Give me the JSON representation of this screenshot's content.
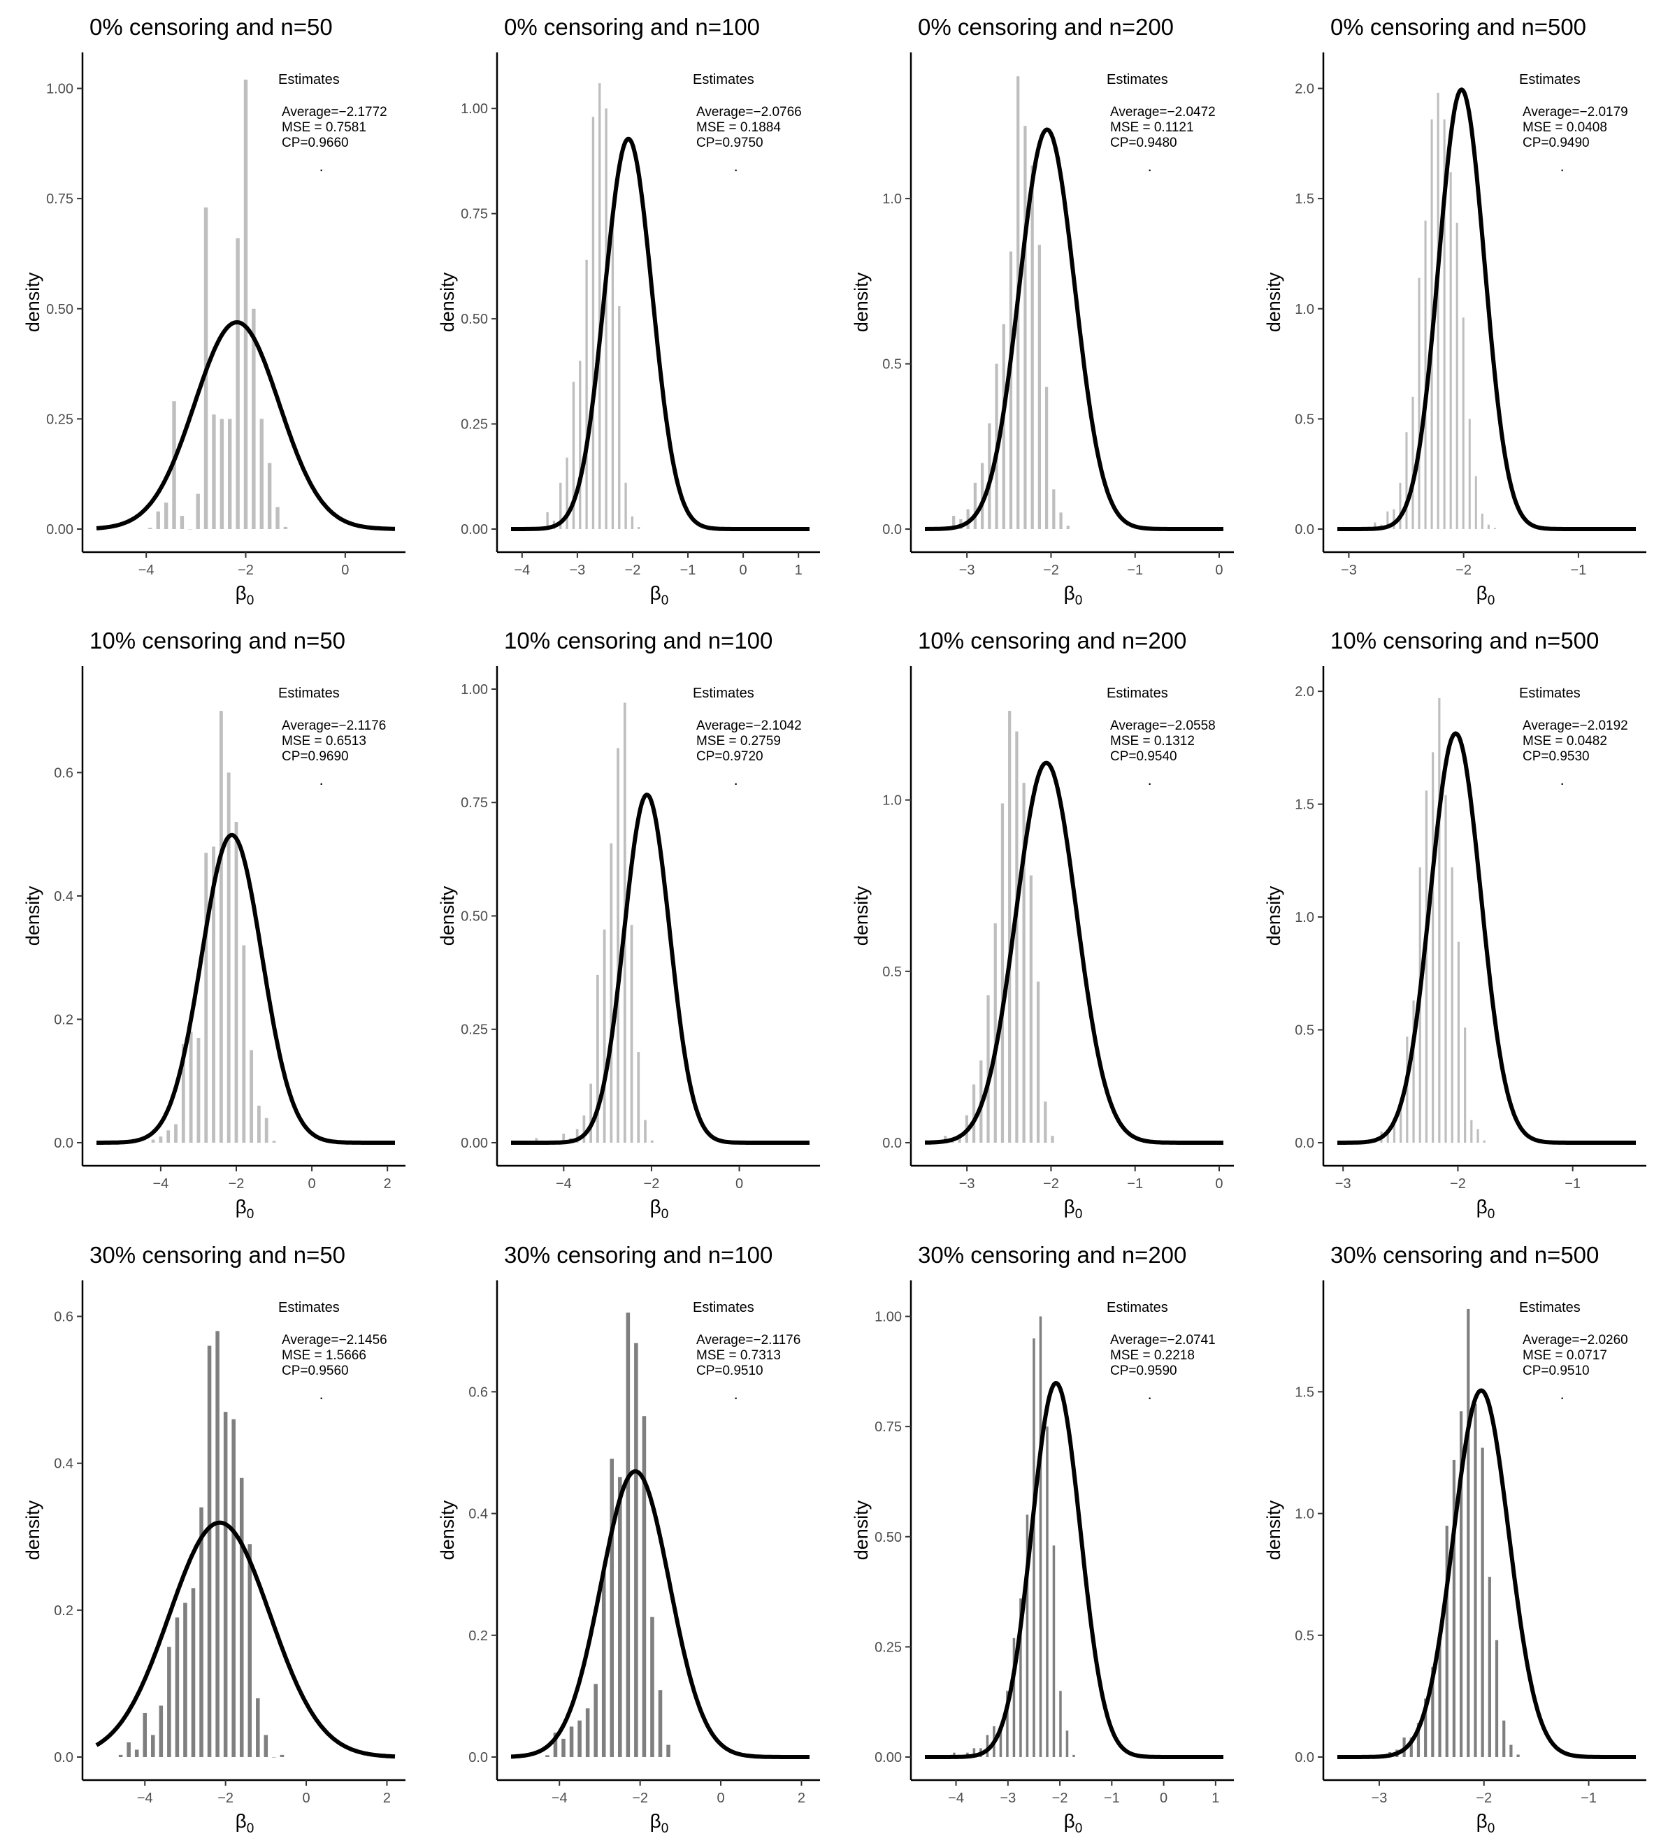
{
  "figure": {
    "ylabel": "density",
    "xlabel_base": "β",
    "xlabel_sub": "0"
  },
  "colors": {
    "bar_light": "#bebebe",
    "bar_dark": "#7f7f7f",
    "curve": "#000000",
    "axis": "#000000",
    "tick_text": "#4d4d4d"
  },
  "chart_data": [
    {
      "type": "bar",
      "title": "0% censoring and n=50",
      "bar_shade": "light",
      "xlim": [
        -5,
        1
      ],
      "ylim": [
        0,
        1.05
      ],
      "xticks": [
        -4,
        -2,
        0
      ],
      "yticks": [
        0,
        0.25,
        0.5,
        0.75,
        1.0
      ],
      "ytick_labels": [
        "0.00",
        "0.25",
        "0.50",
        "0.75",
        "1.00"
      ],
      "bins": {
        "start": -4.0,
        "width": 0.16,
        "values": [
          0.003,
          0.04,
          0.06,
          0.29,
          0.03,
          0.0,
          0.08,
          0.73,
          0.26,
          0.25,
          0.25,
          0.66,
          1.02,
          0.5,
          0.25,
          0.15,
          0.05,
          0.005
        ]
      },
      "curve": {
        "mean": -2.1772,
        "sd": 0.85
      },
      "legend": {
        "title": "Estimates",
        "average": "Average=−2.1772",
        "mse": "MSE = 0.7581",
        "cp": "CP=0.9660",
        "dot": "·"
      }
    },
    {
      "type": "bar",
      "title": "0% censoring and n=100",
      "bar_shade": "light",
      "xlim": [
        -4.2,
        1.2
      ],
      "ylim": [
        0,
        1.1
      ],
      "xticks": [
        -4,
        -3,
        -2,
        -1,
        0,
        1
      ],
      "yticks": [
        0,
        0.25,
        0.5,
        0.75,
        1.0
      ],
      "ytick_labels": [
        "0.00",
        "0.25",
        "0.50",
        "0.75",
        "1.00"
      ],
      "bins": {
        "start": -3.6,
        "width": 0.118,
        "values": [
          0.04,
          0.02,
          0.11,
          0.17,
          0.35,
          0.4,
          0.64,
          0.98,
          1.06,
          1.0,
          0.75,
          0.53,
          0.11,
          0.03,
          0.005
        ]
      },
      "curve": {
        "mean": -2.0766,
        "sd": 0.43
      },
      "legend": {
        "title": "Estimates",
        "average": "Average=−2.0766",
        "mse": "MSE = 0.1884",
        "cp": "CP=0.9750",
        "dot": "·"
      }
    },
    {
      "type": "bar",
      "title": "0% censoring and n=200",
      "bar_shade": "light",
      "xlim": [
        -3.5,
        0.05
      ],
      "ylim": [
        0,
        1.4
      ],
      "xticks": [
        -3,
        -2,
        -1,
        0
      ],
      "yticks": [
        0,
        0.5,
        1.0
      ],
      "ytick_labels": [
        "0.0",
        "0.5",
        "1.0"
      ],
      "bins": {
        "start": -3.2,
        "width": 0.085,
        "values": [
          0.04,
          0.03,
          0.06,
          0.14,
          0.2,
          0.32,
          0.5,
          0.62,
          0.84,
          1.37,
          1.22,
          1.1,
          0.86,
          0.43,
          0.12,
          0.05,
          0.01
        ]
      },
      "curve": {
        "mean": -2.0472,
        "sd": 0.33
      },
      "legend": {
        "title": "Estimates",
        "average": "Average=−2.0472",
        "mse": "MSE = 0.1121",
        "cp": "CP=0.9480",
        "dot": "·"
      }
    },
    {
      "type": "bar",
      "title": "0% censoring and n=500",
      "bar_shade": "light",
      "xlim": [
        -3.1,
        -0.5
      ],
      "ylim": [
        0,
        2.1
      ],
      "xticks": [
        -3,
        -2,
        -1
      ],
      "yticks": [
        0,
        0.5,
        1.0,
        1.5,
        2.0
      ],
      "ytick_labels": [
        "0.0",
        "0.5",
        "1.0",
        "1.5",
        "2.0"
      ],
      "bins": {
        "start": -2.8,
        "width": 0.055,
        "values": [
          0.03,
          0.02,
          0.08,
          0.09,
          0.21,
          0.44,
          0.6,
          1.14,
          1.4,
          1.86,
          1.98,
          1.86,
          1.62,
          1.39,
          0.96,
          0.5,
          0.24,
          0.07,
          0.02,
          0.005
        ]
      },
      "curve": {
        "mean": -2.0179,
        "sd": 0.2
      },
      "legend": {
        "title": "Estimates",
        "average": "Average=−2.0179",
        "mse": "MSE = 0.0408",
        "cp": "CP=0.9490",
        "dot": "·"
      }
    },
    {
      "type": "bar",
      "title": "10% censoring and n=50",
      "bar_shade": "light",
      "xlim": [
        -5.7,
        2.2
      ],
      "ylim": [
        0,
        0.75
      ],
      "xticks": [
        -4,
        -2,
        0,
        2
      ],
      "yticks": [
        0,
        0.2,
        0.4,
        0.6
      ],
      "ytick_labels": [
        "0.0",
        "0.2",
        "0.4",
        "0.6"
      ],
      "bins": {
        "start": -4.3,
        "width": 0.2,
        "values": [
          0.005,
          0.01,
          0.02,
          0.03,
          0.16,
          0.18,
          0.17,
          0.47,
          0.48,
          0.7,
          0.6,
          0.52,
          0.32,
          0.15,
          0.06,
          0.04,
          0.003
        ]
      },
      "curve": {
        "mean": -2.1176,
        "sd": 0.8
      },
      "legend": {
        "title": "Estimates",
        "average": "Average=−2.1176",
        "mse": "MSE = 0.6513",
        "cp": "CP=0.9690",
        "dot": "·"
      }
    },
    {
      "type": "bar",
      "title": "10% censoring and n=100",
      "bar_shade": "light",
      "xlim": [
        -5.2,
        1.6
      ],
      "ylim": [
        0,
        1.02
      ],
      "xticks": [
        -4,
        -2,
        0
      ],
      "yticks": [
        0,
        0.25,
        0.5,
        0.75,
        1.0
      ],
      "ytick_labels": [
        "0.00",
        "0.25",
        "0.50",
        "0.75",
        "1.00"
      ],
      "bins": {
        "start": -4.7,
        "width": 0.155,
        "values": [
          0.01,
          0.0,
          0.0,
          0.0,
          0.02,
          0.01,
          0.03,
          0.06,
          0.13,
          0.37,
          0.47,
          0.66,
          0.87,
          0.97,
          0.48,
          0.2,
          0.05,
          0.005
        ]
      },
      "curve": {
        "mean": -2.1042,
        "sd": 0.52
      },
      "legend": {
        "title": "Estimates",
        "average": "Average=−2.1042",
        "mse": "MSE = 0.2759",
        "cp": "CP=0.9720",
        "dot": "·"
      }
    },
    {
      "type": "bar",
      "title": "10% censoring and n=200",
      "bar_shade": "light",
      "xlim": [
        -3.5,
        0.05
      ],
      "ylim": [
        0,
        1.35
      ],
      "xticks": [
        -3,
        -2,
        -1,
        0
      ],
      "yticks": [
        0,
        0.5,
        1.0
      ],
      "ytick_labels": [
        "0.0",
        "0.5",
        "1.0"
      ],
      "bins": {
        "start": -3.3,
        "width": 0.085,
        "values": [
          0.02,
          0.01,
          0.02,
          0.08,
          0.17,
          0.24,
          0.43,
          0.64,
          0.99,
          1.26,
          1.2,
          1.05,
          0.78,
          0.47,
          0.12,
          0.02
        ]
      },
      "curve": {
        "mean": -2.0558,
        "sd": 0.36
      },
      "legend": {
        "title": "Estimates",
        "average": "Average=−2.0558",
        "mse": "MSE = 0.1312",
        "cp": "CP=0.9540",
        "dot": "·"
      }
    },
    {
      "type": "bar",
      "title": "10% censoring and n=500",
      "bar_shade": "light",
      "xlim": [
        -3.05,
        -0.45
      ],
      "ylim": [
        0,
        2.05
      ],
      "xticks": [
        -3,
        -2,
        -1
      ],
      "yticks": [
        0,
        0.5,
        1.0,
        1.5,
        2.0
      ],
      "ytick_labels": [
        "0.0",
        "0.5",
        "1.0",
        "1.5",
        "2.0"
      ],
      "bins": {
        "start": -2.75,
        "width": 0.056,
        "values": [
          0.02,
          0.05,
          0.05,
          0.1,
          0.18,
          0.47,
          0.63,
          1.22,
          1.56,
          1.73,
          1.97,
          1.54,
          1.22,
          0.89,
          0.51,
          0.1,
          0.06,
          0.01
        ]
      },
      "curve": {
        "mean": -2.0192,
        "sd": 0.22
      },
      "legend": {
        "title": "Estimates",
        "average": "Average=−2.0192",
        "mse": "MSE = 0.0482",
        "cp": "CP=0.9530",
        "dot": "·"
      }
    },
    {
      "type": "bar",
      "title": "30% censoring and n=50",
      "bar_shade": "dark",
      "xlim": [
        -5.2,
        2.2
      ],
      "ylim": [
        0,
        0.63
      ],
      "xticks": [
        -4,
        -2,
        0,
        2
      ],
      "yticks": [
        0,
        0.2,
        0.4,
        0.6
      ],
      "ytick_labels": [
        "0.0",
        "0.2",
        "0.4",
        "0.6"
      ],
      "bins": {
        "start": -4.7,
        "width": 0.2,
        "values": [
          0.003,
          0.02,
          0.01,
          0.06,
          0.03,
          0.07,
          0.15,
          0.19,
          0.21,
          0.23,
          0.34,
          0.56,
          0.58,
          0.47,
          0.46,
          0.38,
          0.29,
          0.08,
          0.03,
          0.0,
          0.003
        ]
      },
      "curve": {
        "mean": -2.1456,
        "sd": 1.25
      },
      "legend": {
        "title": "Estimates",
        "average": "Average=−2.1456",
        "mse": "MSE = 1.5666",
        "cp": "CP=0.9560",
        "dot": "·"
      }
    },
    {
      "type": "bar",
      "title": "30% censoring and n=100",
      "bar_shade": "dark",
      "xlim": [
        -5.2,
        2.2
      ],
      "ylim": [
        0,
        0.76
      ],
      "xticks": [
        -4,
        -2,
        0,
        2
      ],
      "yticks": [
        0,
        0.2,
        0.4,
        0.6
      ],
      "ytick_labels": [
        "0.0",
        "0.2",
        "0.4",
        "0.6"
      ],
      "bins": {
        "start": -4.4,
        "width": 0.2,
        "values": [
          0.003,
          0.04,
          0.03,
          0.05,
          0.06,
          0.08,
          0.12,
          0.31,
          0.49,
          0.46,
          0.73,
          0.68,
          0.56,
          0.23,
          0.11,
          0.02
        ]
      },
      "curve": {
        "mean": -2.1176,
        "sd": 0.85
      },
      "legend": {
        "title": "Estimates",
        "average": "Average=−2.1176",
        "mse": "MSE = 0.7313",
        "cp": "CP=0.9510",
        "dot": "·"
      }
    },
    {
      "type": "bar",
      "title": "30% censoring and n=200",
      "bar_shade": "dark",
      "xlim": [
        -4.6,
        1.15
      ],
      "ylim": [
        0,
        1.05
      ],
      "xticks": [
        -4,
        -3,
        -2,
        -1,
        0,
        1
      ],
      "yticks": [
        0,
        0.25,
        0.5,
        0.75,
        1.0
      ],
      "ytick_labels": [
        "0.00",
        "0.25",
        "0.50",
        "0.75",
        "1.00"
      ],
      "bins": {
        "start": -4.1,
        "width": 0.128,
        "values": [
          0.01,
          0.0,
          0.01,
          0.02,
          0.02,
          0.05,
          0.07,
          0.07,
          0.15,
          0.27,
          0.36,
          0.55,
          0.95,
          1.0,
          0.75,
          0.48,
          0.15,
          0.06,
          0.005
        ]
      },
      "curve": {
        "mean": -2.0741,
        "sd": 0.47
      },
      "legend": {
        "title": "Estimates",
        "average": "Average=−2.0741",
        "mse": "MSE = 0.2218",
        "cp": "CP=0.9590",
        "dot": "·"
      }
    },
    {
      "type": "bar",
      "title": "30% censoring and n=500",
      "bar_shade": "dark",
      "xlim": [
        -3.4,
        -0.55
      ],
      "ylim": [
        0,
        1.9
      ],
      "xticks": [
        -3,
        -2,
        -1
      ],
      "yticks": [
        0,
        0.5,
        1.0,
        1.5
      ],
      "ytick_labels": [
        "0.0",
        "0.5",
        "1.0",
        "1.5"
      ],
      "bins": {
        "start": -3.0,
        "width": 0.068,
        "values": [
          0.01,
          0.02,
          0.03,
          0.08,
          0.08,
          0.14,
          0.24,
          0.37,
          0.51,
          0.95,
          1.22,
          1.42,
          1.84,
          1.45,
          1.27,
          0.74,
          0.48,
          0.15,
          0.05,
          0.01
        ]
      },
      "curve": {
        "mean": -2.026,
        "sd": 0.265
      },
      "legend": {
        "title": "Estimates",
        "average": "Average=−2.0260",
        "mse": "MSE = 0.0717",
        "cp": "CP=0.9510",
        "dot": "·"
      }
    }
  ]
}
